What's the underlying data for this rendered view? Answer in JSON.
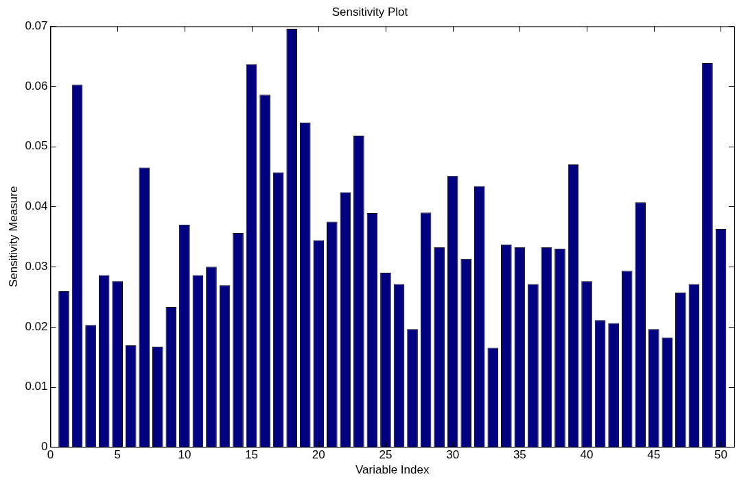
{
  "chart_data": {
    "type": "bar",
    "title": "Sensitivity Plot",
    "xlabel": "Variable Index",
    "ylabel": "Sensitivity Measure",
    "x": [
      1,
      2,
      3,
      4,
      5,
      6,
      7,
      8,
      9,
      10,
      11,
      12,
      13,
      14,
      15,
      16,
      17,
      18,
      19,
      20,
      21,
      22,
      23,
      24,
      25,
      26,
      27,
      28,
      29,
      30,
      31,
      32,
      33,
      34,
      35,
      36,
      37,
      38,
      39,
      40,
      41,
      42,
      43,
      44,
      45,
      46,
      47,
      48,
      49,
      50
    ],
    "values": [
      0.0259,
      0.0603,
      0.0203,
      0.0286,
      0.0276,
      0.0169,
      0.0465,
      0.0167,
      0.0233,
      0.037,
      0.0286,
      0.03,
      0.0269,
      0.0356,
      0.0637,
      0.0586,
      0.0457,
      0.0696,
      0.054,
      0.0344,
      0.0375,
      0.0424,
      0.0518,
      0.0389,
      0.029,
      0.0271,
      0.0196,
      0.039,
      0.0332,
      0.0451,
      0.0313,
      0.0434,
      0.0165,
      0.0337,
      0.0332,
      0.0271,
      0.0332,
      0.033,
      0.047,
      0.0276,
      0.0211,
      0.0206,
      0.0293,
      0.0407,
      0.0196,
      0.0182,
      0.0257,
      0.0271,
      0.0639,
      0.0363
    ],
    "color": "#000080",
    "xlim": [
      0,
      51
    ],
    "xticks": [
      0,
      5,
      10,
      15,
      20,
      25,
      30,
      35,
      40,
      45,
      50
    ],
    "ylim": [
      0,
      0.07
    ],
    "yticks": [
      0,
      0.01,
      0.02,
      0.03,
      0.04,
      0.05,
      0.06,
      0.07
    ],
    "grid": false,
    "legend": false
  }
}
